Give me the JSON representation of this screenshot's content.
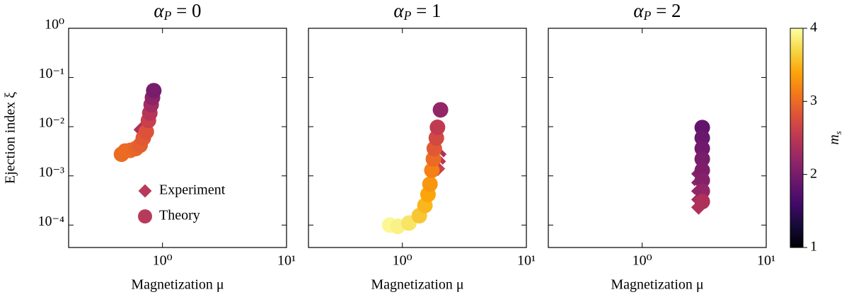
{
  "chart_data": [
    {
      "type": "scatter",
      "title": {
        "base": "α",
        "sub": "P",
        "rest": " = 0"
      },
      "xlabel": "Magnetization μ",
      "ylabel": "Ejection index ξ",
      "xscale": "log",
      "yscale": "log",
      "xlim": [
        0.175,
        10
      ],
      "ylim": [
        3.5e-05,
        1
      ],
      "xticks": [
        {
          "value": 1,
          "label": "10⁰"
        },
        {
          "value": 10,
          "label": "10¹"
        }
      ],
      "yticks": [
        {
          "value": 0.0001,
          "label": "10⁻⁴"
        },
        {
          "value": 0.001,
          "label": "10⁻³"
        },
        {
          "value": 0.01,
          "label": "10⁻²"
        },
        {
          "value": 0.1,
          "label": "10⁻¹"
        },
        {
          "value": 1,
          "label": "10⁰"
        }
      ],
      "show_yticklabels": true,
      "legend": "lower right",
      "series": [
        {
          "name": "Experiment",
          "marker": "diamond",
          "color": "#b83a5b",
          "x": [
            0.67
          ],
          "values": [
            0.0087
          ],
          "colors": [
            2.4
          ]
        },
        {
          "name": "Theory",
          "marker": "circle",
          "color": "#b83a5b",
          "x": [
            0.467,
            0.5,
            0.55,
            0.61,
            0.66,
            0.7,
            0.74,
            0.77,
            0.79,
            0.81,
            0.83,
            0.85
          ],
          "values": [
            0.00275,
            0.0032,
            0.0033,
            0.0036,
            0.0042,
            0.0059,
            0.0079,
            0.0134,
            0.019,
            0.028,
            0.039,
            0.054
          ],
          "colors": [
            3.0,
            3.0,
            3.0,
            2.95,
            2.9,
            2.85,
            2.8,
            2.6,
            2.45,
            2.3,
            2.15,
            2.0
          ]
        }
      ]
    },
    {
      "type": "scatter",
      "title": {
        "base": "α",
        "sub": "P",
        "rest": " = 1"
      },
      "xlabel": "Magnetization μ",
      "xscale": "log",
      "yscale": "log",
      "xlim": [
        0.175,
        10
      ],
      "ylim": [
        3.5e-05,
        1
      ],
      "xticks": [
        {
          "value": 1,
          "label": "10⁰"
        },
        {
          "value": 10,
          "label": "10¹"
        }
      ],
      "yticks": [
        0.0001,
        0.001,
        0.01,
        0.1,
        1
      ],
      "show_yticklabels": false,
      "series": [
        {
          "name": "Experiment",
          "marker": "diamond",
          "x": [
            1.98,
            1.96,
            1.93
          ],
          "values": [
            0.00275,
            0.00197,
            0.0014
          ],
          "colors": [
            2.4,
            2.5,
            2.6
          ]
        },
        {
          "name": "Theory",
          "marker": "circle",
          "x": [
            0.79,
            0.92,
            1.13,
            1.37,
            1.52,
            1.61,
            1.67,
            1.73,
            1.78,
            1.81,
            1.88,
            1.92,
            2.03
          ],
          "values": [
            0.0001,
            9.4e-05,
            0.00011,
            0.000155,
            0.00025,
            0.00042,
            0.00068,
            0.0013,
            0.0022,
            0.0036,
            0.0059,
            0.0097,
            0.022
          ],
          "colors": [
            3.95,
            3.9,
            3.8,
            3.6,
            3.5,
            3.4,
            3.3,
            3.15,
            3.0,
            2.85,
            2.7,
            2.55,
            2.2
          ]
        }
      ]
    },
    {
      "type": "scatter",
      "title": {
        "base": "α",
        "sub": "P",
        "rest": " = 2"
      },
      "xlabel": "Magnetization μ",
      "xscale": "log",
      "yscale": "log",
      "xlim": [
        0.175,
        10
      ],
      "ylim": [
        3.5e-05,
        1
      ],
      "xticks": [
        {
          "value": 1,
          "label": "10⁰"
        },
        {
          "value": 10,
          "label": "10¹"
        }
      ],
      "yticks": [
        0.0001,
        0.001,
        0.01,
        0.1,
        1
      ],
      "show_yticklabels": false,
      "series": [
        {
          "name": "Experiment",
          "marker": "diamond",
          "x": [
            2.85,
            2.85,
            2.85,
            2.85,
            2.85
          ],
          "values": [
            0.0011,
            0.00073,
            0.00049,
            0.00033,
            0.00023
          ],
          "colors": [
            2.1,
            2.15,
            2.2,
            2.3,
            2.4
          ]
        },
        {
          "name": "Theory",
          "marker": "circle",
          "x": [
            3.05,
            3.05,
            3.05,
            3.05,
            3.05,
            3.05,
            3.05,
            3.05
          ],
          "values": [
            0.0096,
            0.0059,
            0.0036,
            0.0022,
            0.0013,
            0.00081,
            0.00049,
            0.0003
          ],
          "colors": [
            1.85,
            1.9,
            1.95,
            2.0,
            2.05,
            2.1,
            2.2,
            2.4
          ]
        }
      ]
    }
  ],
  "colorbar": {
    "label": {
      "base": "m",
      "sub": "s"
    },
    "colormap": "inferno",
    "lim": [
      1,
      4
    ],
    "ticks": [
      1,
      2,
      3,
      4
    ]
  }
}
